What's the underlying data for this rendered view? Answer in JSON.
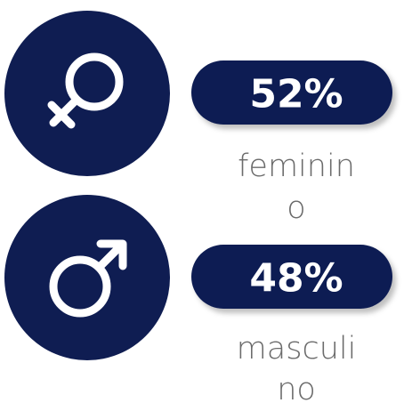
{
  "items": [
    {
      "value": "52%",
      "label_lines": [
        "feminin",
        "o"
      ]
    },
    {
      "value": "48%",
      "label_lines": [
        "masculi",
        "no"
      ]
    }
  ]
}
